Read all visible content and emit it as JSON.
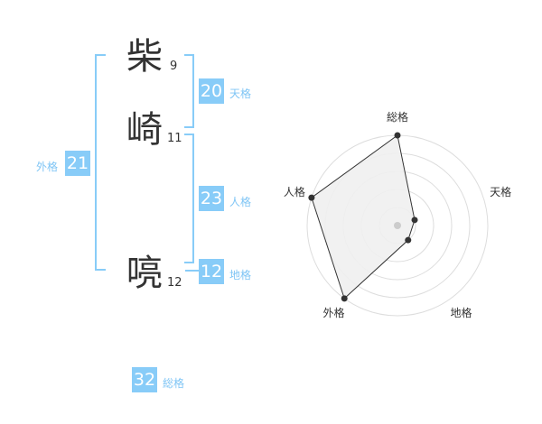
{
  "name": {
    "chars": [
      {
        "char": "柴",
        "strokes": "9"
      },
      {
        "char": "崎",
        "strokes": "11"
      },
      {
        "char": "喨",
        "strokes": "12"
      }
    ]
  },
  "kaku": {
    "tenkaku": {
      "value": "20",
      "label": "天格"
    },
    "jinkaku": {
      "value": "23",
      "label": "人格"
    },
    "chikaku": {
      "value": "12",
      "label": "地格"
    },
    "gaikaku": {
      "value": "21",
      "label": "外格"
    },
    "soukaku": {
      "value": "32",
      "label": "総格"
    }
  },
  "colors": {
    "accent": "#88ccf8",
    "label": "#7fc5f5",
    "polygon_fill": "#f0f0f0",
    "polygon_stroke": "#333333"
  },
  "chart_data": {
    "type": "radar",
    "axes": [
      "総格",
      "天格",
      "地格",
      "外格",
      "人格"
    ],
    "values": [
      5,
      1,
      1,
      5,
      5
    ],
    "rlim": [
      0,
      5
    ],
    "rings": 5
  }
}
